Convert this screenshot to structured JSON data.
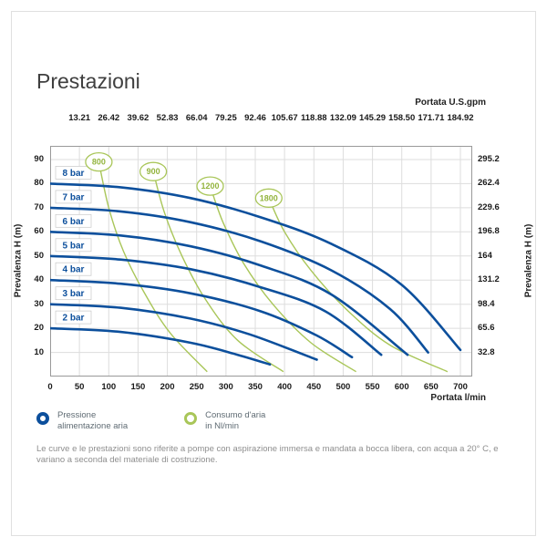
{
  "title": "Prestazioni",
  "chart_data": {
    "type": "line",
    "title": "Prestazioni",
    "x_unit": "l/min",
    "y_unit": "m",
    "grid": true,
    "xlim": [
      0,
      720
    ],
    "ylim": [
      0,
      96
    ],
    "x_axis_bottom": {
      "label": "Portata l/min",
      "ticks": [
        "0",
        "50",
        "100",
        "150",
        "200",
        "250",
        "300",
        "350",
        "400",
        "450",
        "500",
        "550",
        "600",
        "650",
        "700"
      ]
    },
    "x_axis_top": {
      "label": "Portata U.S.gpm",
      "ticks": [
        "13.21",
        "26.42",
        "39.62",
        "52.83",
        "66.04",
        "79.25",
        "92.46",
        "105.67",
        "118.88",
        "132.09",
        "145.29",
        "158.50",
        "171.71",
        "184.92"
      ]
    },
    "y_axis_left": {
      "label": "Prevalenza H (m)",
      "ticks": [
        "10",
        "20",
        "30",
        "40",
        "50",
        "60",
        "70",
        "80",
        "90"
      ]
    },
    "y_axis_right": {
      "label": "Prevalenza H (m)",
      "ticks": [
        "32.8",
        "65.6",
        "98.4",
        "131.2",
        "164",
        "196.8",
        "229.6",
        "262.4",
        "295.2"
      ]
    },
    "colors": {
      "pressure_curve": "#0c4f9c",
      "air_curve": "#a9c659",
      "air_label": "#93b43e",
      "grid": "#dddddd",
      "border": "#999999"
    },
    "pressure_series": [
      {
        "name": "2 bar",
        "points": [
          [
            0,
            20
          ],
          [
            120,
            18.5
          ],
          [
            240,
            14
          ],
          [
            320,
            9
          ],
          [
            375,
            5
          ]
        ]
      },
      {
        "name": "3 bar",
        "points": [
          [
            0,
            30
          ],
          [
            120,
            28.5
          ],
          [
            240,
            24
          ],
          [
            340,
            17.5
          ],
          [
            455,
            7
          ]
        ]
      },
      {
        "name": "4 bar",
        "points": [
          [
            0,
            40
          ],
          [
            120,
            38.5
          ],
          [
            240,
            34.5
          ],
          [
            360,
            27
          ],
          [
            455,
            17
          ],
          [
            515,
            8
          ]
        ]
      },
      {
        "name": "5 bar",
        "points": [
          [
            0,
            50
          ],
          [
            120,
            48.5
          ],
          [
            240,
            44.5
          ],
          [
            360,
            37
          ],
          [
            470,
            27
          ],
          [
            565,
            9
          ]
        ]
      },
      {
        "name": "6 bar",
        "points": [
          [
            0,
            60
          ],
          [
            120,
            58.5
          ],
          [
            240,
            54
          ],
          [
            360,
            46
          ],
          [
            480,
            34
          ],
          [
            610,
            9
          ]
        ]
      },
      {
        "name": "7 bar",
        "points": [
          [
            0,
            70
          ],
          [
            120,
            68.5
          ],
          [
            240,
            64
          ],
          [
            360,
            56
          ],
          [
            480,
            44
          ],
          [
            580,
            28
          ],
          [
            645,
            10
          ]
        ]
      },
      {
        "name": "8 bar",
        "points": [
          [
            0,
            80
          ],
          [
            120,
            78.5
          ],
          [
            240,
            74
          ],
          [
            360,
            66
          ],
          [
            480,
            55
          ],
          [
            600,
            38
          ],
          [
            700,
            11
          ]
        ]
      }
    ],
    "air_series": [
      {
        "name": "800",
        "points": [
          [
            83,
            89
          ],
          [
            100,
            70
          ],
          [
            125,
            52
          ],
          [
            160,
            35
          ],
          [
            205,
            18
          ],
          [
            268,
            2
          ]
        ]
      },
      {
        "name": "900",
        "points": [
          [
            176,
            85
          ],
          [
            195,
            68
          ],
          [
            225,
            50
          ],
          [
            265,
            32
          ],
          [
            320,
            15
          ],
          [
            398,
            2
          ]
        ]
      },
      {
        "name": "1200",
        "points": [
          [
            273,
            79
          ],
          [
            295,
            64
          ],
          [
            330,
            47
          ],
          [
            380,
            30
          ],
          [
            445,
            14
          ],
          [
            522,
            2
          ]
        ]
      },
      {
        "name": "1800",
        "points": [
          [
            373,
            74
          ],
          [
            400,
            60
          ],
          [
            445,
            44
          ],
          [
            505,
            28
          ],
          [
            580,
            13
          ],
          [
            678,
            2
          ]
        ]
      }
    ]
  },
  "legend": [
    {
      "icon": "pressure-ring",
      "line1": "Pressione",
      "line2": "alimentazione aria"
    },
    {
      "icon": "air-ring",
      "line1": "Consumo d'aria",
      "line2": "in Nl/min"
    }
  ],
  "footer": "Le curve e le prestazioni sono riferite a pompe con aspirazione immersa e mandata a bocca libera, con acqua a 20° C, e variano a seconda del materiale di costruzione."
}
